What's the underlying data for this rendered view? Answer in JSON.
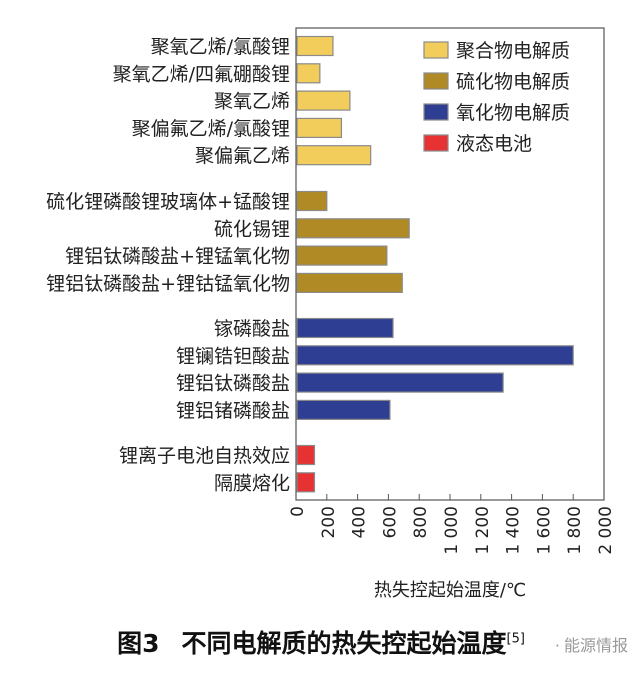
{
  "chart_data": {
    "type": "bar",
    "orientation": "horizontal",
    "xlabel": "热失控起始温度/℃",
    "xlim": [
      0,
      2000
    ],
    "xticks": [
      "0",
      "200",
      "400",
      "600",
      "800",
      "1 000",
      "1 200",
      "1 400",
      "1 600",
      "1 800",
      "2 000"
    ],
    "grid": false,
    "legend_position": "top-right",
    "groups": [
      {
        "name": "聚合物电解质",
        "color": "#f2cd5c",
        "items": [
          {
            "label": "聚氧乙烯/氯酸锂",
            "value": 240
          },
          {
            "label": "聚氧乙烯/四氟硼酸锂",
            "value": 155
          },
          {
            "label": "聚氧乙烯",
            "value": 350
          },
          {
            "label": "聚偏氟乙烯/氯酸锂",
            "value": 295
          },
          {
            "label": "聚偏氟乙烯",
            "value": 485
          }
        ]
      },
      {
        "name": "硫化物电解质",
        "color": "#b08a24",
        "items": [
          {
            "label": "硫化锂磷酸锂玻璃体+锰酸锂",
            "value": 200
          },
          {
            "label": "硫化锡锂",
            "value": 735
          },
          {
            "label": "锂铝钛磷酸盐+锂锰氧化物",
            "value": 590
          },
          {
            "label": "锂铝钛磷酸盐+锂钴锰氧化物",
            "value": 690
          }
        ]
      },
      {
        "name": "氧化物电解质",
        "color": "#2e3f93",
        "items": [
          {
            "label": "镓磷酸盐",
            "value": 630
          },
          {
            "label": "锂镧锆钽酸盐",
            "value": 1800
          },
          {
            "label": "锂铝钛磷酸盐",
            "value": 1345
          },
          {
            "label": "锂铝锗磷酸盐",
            "value": 610
          }
        ]
      },
      {
        "name": "液态电池",
        "color": "#e63232",
        "items": [
          {
            "label": "锂离子电池自热效应",
            "value": 120
          },
          {
            "label": "隔膜熔化",
            "value": 120
          }
        ]
      }
    ]
  },
  "caption": {
    "figure_number": "图3",
    "title": "不同电解质的热失控起始温度",
    "ref": "[5]"
  },
  "watermark": {
    "dot": "·",
    "text": "能源情报"
  }
}
